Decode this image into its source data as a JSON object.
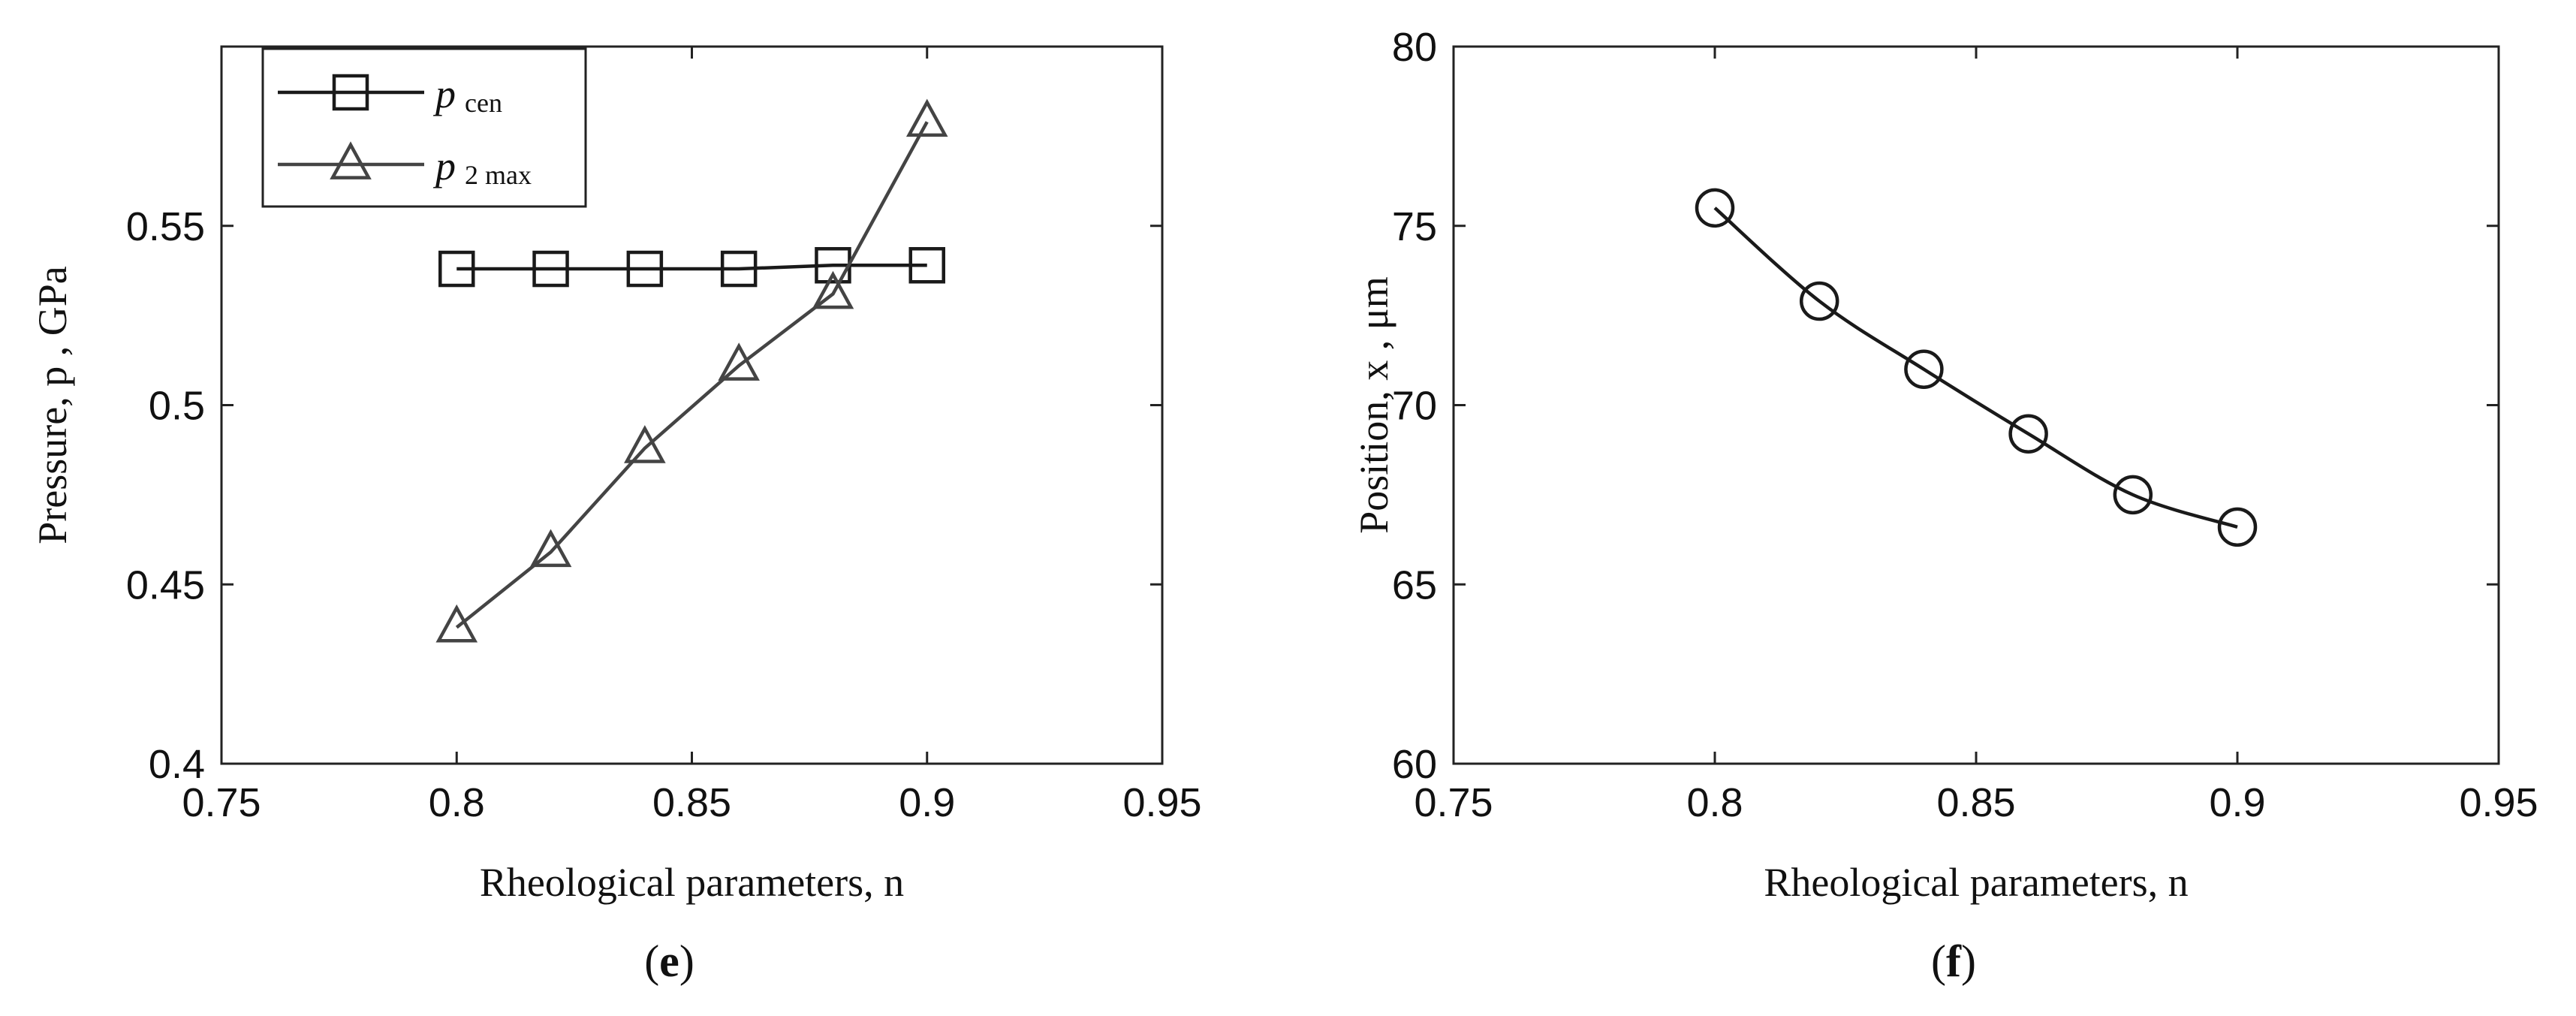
{
  "chart_data": [
    {
      "type": "line",
      "panel_label_prefix": "(",
      "panel_label": "e",
      "panel_label_suffix": ")",
      "xlabel": "Rheological parameters, n",
      "ylabel": "Pressure, p , GPa",
      "xlim": [
        0.75,
        0.95
      ],
      "ylim": [
        0.4,
        0.6
      ],
      "xticks": [
        "0.75",
        "0.8",
        "0.85",
        "0.9",
        "0.95"
      ],
      "yticks": [
        "0.4",
        "0.45",
        "0.5",
        "0.55"
      ],
      "grid": false,
      "legend_position": "top-left",
      "x": [
        0.8,
        0.82,
        0.84,
        0.86,
        0.88,
        0.9
      ],
      "series": [
        {
          "name": "p",
          "subscript": "cen",
          "marker": "square",
          "color": "#1a1a1a",
          "values": [
            0.538,
            0.538,
            0.538,
            0.538,
            0.539,
            0.539
          ]
        },
        {
          "name": "p",
          "subscript": "2 max",
          "marker": "triangle",
          "color": "#444444",
          "values": [
            0.438,
            0.459,
            0.488,
            0.511,
            0.531,
            0.579
          ]
        }
      ]
    },
    {
      "type": "line",
      "panel_label_prefix": "(",
      "panel_label": "f",
      "panel_label_suffix": ")",
      "xlabel": "Rheological parameters,  n",
      "ylabel": "Position, x , μm",
      "xlim": [
        0.75,
        0.95
      ],
      "ylim": [
        60,
        80
      ],
      "xticks": [
        "0.75",
        "0.8",
        "0.85",
        "0.9",
        "0.95"
      ],
      "yticks": [
        "60",
        "65",
        "70",
        "75",
        "80"
      ],
      "grid": false,
      "legend_position": "none",
      "x": [
        0.8,
        0.82,
        0.84,
        0.86,
        0.88,
        0.9
      ],
      "series": [
        {
          "marker": "circle",
          "color": "#1a1a1a",
          "smooth": true,
          "values": [
            75.5,
            72.9,
            71.0,
            69.2,
            67.5,
            66.6
          ]
        }
      ]
    }
  ]
}
